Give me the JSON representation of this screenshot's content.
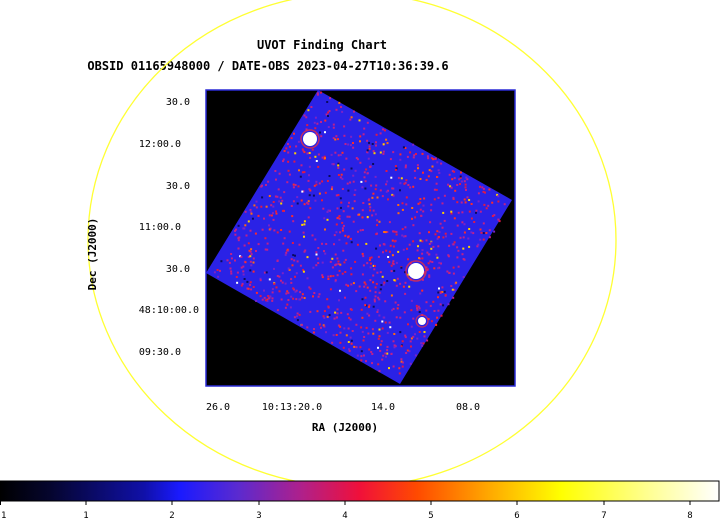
{
  "header": {
    "title": "UVOT Finding Chart",
    "subtitle": "OBSID 01165948000 / DATE-OBS 2023-04-27T10:36:39.6"
  },
  "axes": {
    "xlabel": "RA (J2000)",
    "ylabel": "Dec (J2000)",
    "x_ticks": [
      "26.0",
      "10:13:20.0",
      "14.0",
      "08.0"
    ],
    "y_ticks": [
      "30.0",
      "12:00.0",
      "30.0",
      "11:00.0",
      "30.0",
      "48:10:00.0",
      "09:30.0"
    ]
  },
  "colorbar": {
    "ticks": [
      "1",
      "1",
      "2",
      "3",
      "4",
      "5",
      "6",
      "7",
      "8"
    ]
  },
  "colors": {
    "circle": "#ffff33",
    "frame": "#2b2bd6",
    "background": "#000000",
    "field": "#2a22e6"
  }
}
